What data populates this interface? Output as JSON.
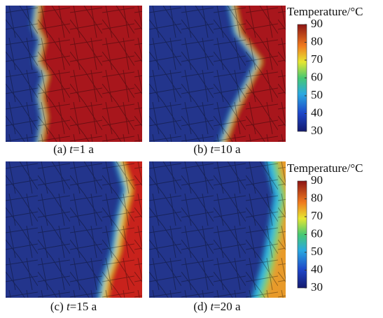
{
  "panels": [
    {
      "caption": {
        "prefix": "(a) ",
        "variable": "t",
        "suffix": "=1 a"
      }
    },
    {
      "caption": {
        "prefix": "(b) ",
        "variable": "t",
        "suffix": "=10 a"
      }
    },
    {
      "caption": {
        "prefix": "(c) ",
        "variable": "t",
        "suffix": "=15 a"
      }
    },
    {
      "caption": {
        "prefix": "(d) ",
        "variable": "t",
        "suffix": "=20 a"
      }
    }
  ],
  "colorbars": [
    {
      "title": "Temperature/°C",
      "range": [
        30,
        90
      ],
      "ticks": [
        30,
        40,
        50,
        60,
        70,
        80,
        90
      ]
    },
    {
      "title": "Temperature/°C",
      "range": [
        30,
        90
      ],
      "ticks": [
        30,
        40,
        50,
        60,
        70,
        80,
        90
      ]
    }
  ]
}
